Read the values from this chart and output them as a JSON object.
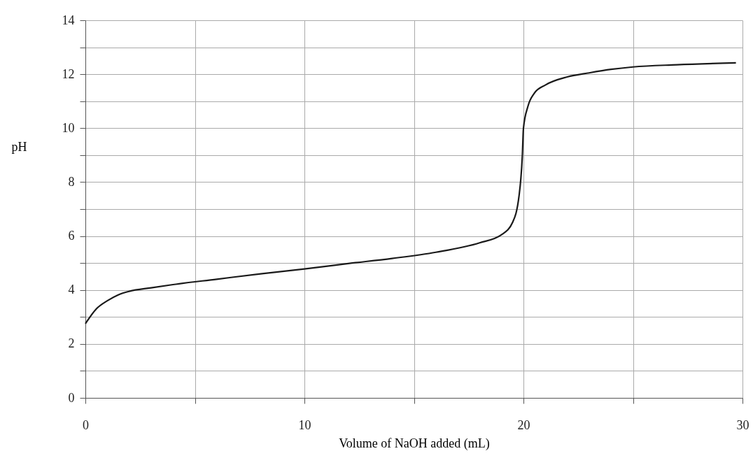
{
  "chart_data": {
    "type": "line",
    "xlabel": "Volume of NaOH added (mL)",
    "ylabel": "pH",
    "x": [
      0,
      0.5,
      1,
      1.5,
      2,
      3,
      4,
      6,
      8,
      10,
      12,
      14,
      16,
      18,
      19,
      19.5,
      19.8,
      19.95,
      20,
      20.2,
      20.5,
      21,
      22,
      23,
      24,
      25,
      27,
      29.7
    ],
    "series": [
      {
        "color": "#1a1a1a",
        "values": [
          2.75,
          3.3,
          3.6,
          3.82,
          3.95,
          4.08,
          4.2,
          4.4,
          4.6,
          4.78,
          4.98,
          5.17,
          5.4,
          5.75,
          6.05,
          6.5,
          7.5,
          9,
          10,
          10.8,
          11.3,
          11.6,
          11.9,
          12.05,
          12.18,
          12.27,
          12.35,
          12.42
        ]
      }
    ],
    "xlim": [
      0,
      30
    ],
    "ylim": [
      0,
      14
    ],
    "xticks": [
      0,
      {
        "value": 5,
        "label": null
      },
      10,
      {
        "value": 15,
        "label": null
      },
      20,
      {
        "value": 25,
        "label": null
      },
      30
    ],
    "yticks": [
      0,
      {
        "value": 1,
        "label": null
      },
      2,
      {
        "value": 3,
        "label": null
      },
      4,
      {
        "value": 5,
        "label": null
      },
      6,
      {
        "value": 7,
        "label": null
      },
      8,
      {
        "value": 9,
        "label": null
      },
      10,
      {
        "value": 11,
        "label": null
      },
      12,
      {
        "value": 13,
        "label": null
      },
      14
    ],
    "grid": true,
    "marker": "none",
    "line_style": "solid",
    "legend": false
  }
}
